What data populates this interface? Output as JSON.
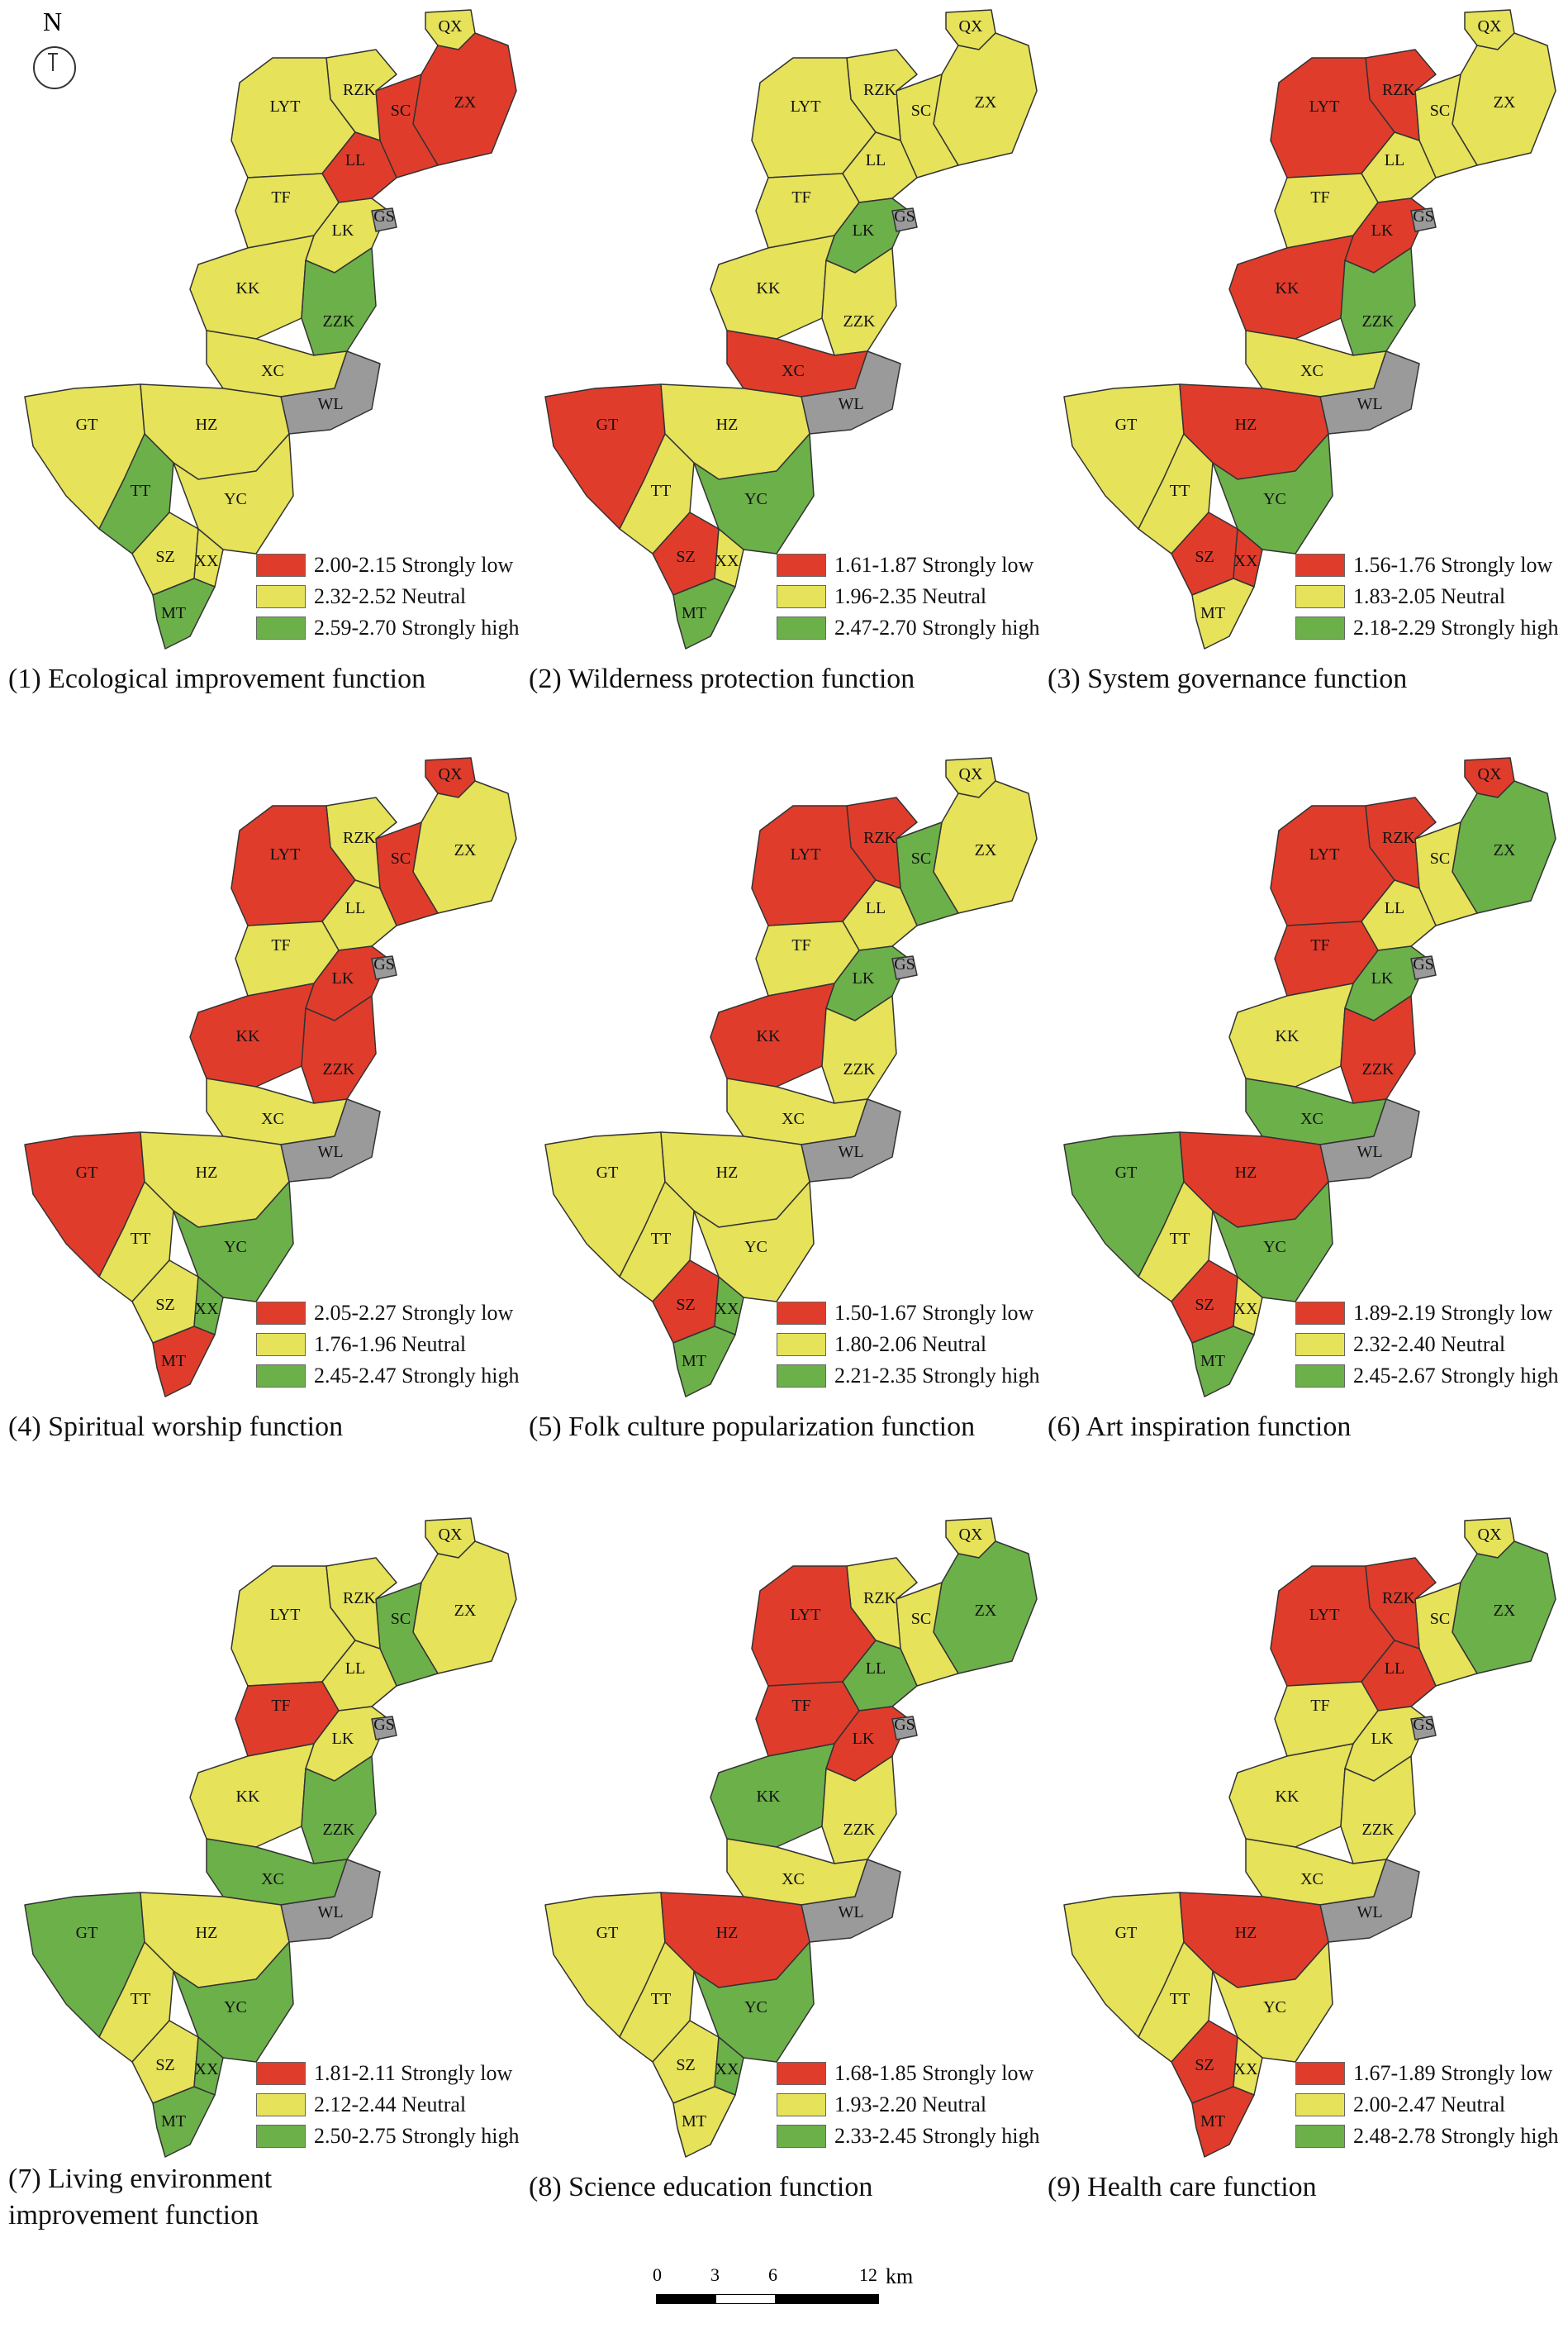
{
  "north_label": "N",
  "colors": {
    "low": "#e03c2c",
    "neutral": "#e6e25a",
    "high": "#6cb04a",
    "none": "#9a9a9a",
    "border": "#333333"
  },
  "regions": [
    "QX",
    "ZX",
    "SC",
    "RZK",
    "LYT",
    "LL",
    "TF",
    "LK",
    "GS",
    "KK",
    "ZZK",
    "XC",
    "WL",
    "GT",
    "HZ",
    "TT",
    "YC",
    "SZ",
    "XX",
    "MT"
  ],
  "maps": [
    {
      "caption": "(1) Ecological improvement function",
      "legend": [
        "2.00-2.15 Strongly low",
        "2.32-2.52 Neutral",
        "2.59-2.70 Strongly high"
      ],
      "classes": {
        "QX": "neutral",
        "ZX": "low",
        "SC": "low",
        "RZK": "neutral",
        "LYT": "neutral",
        "LL": "low",
        "TF": "neutral",
        "LK": "neutral",
        "GS": "none",
        "KK": "neutral",
        "ZZK": "high",
        "XC": "neutral",
        "WL": "none",
        "GT": "neutral",
        "HZ": "neutral",
        "TT": "high",
        "YC": "neutral",
        "SZ": "neutral",
        "XX": "neutral",
        "MT": "high"
      }
    },
    {
      "caption": "(2) Wilderness protection function",
      "legend": [
        "1.61-1.87 Strongly low",
        "1.96-2.35 Neutral",
        "2.47-2.70 Strongly high"
      ],
      "classes": {
        "QX": "neutral",
        "ZX": "neutral",
        "SC": "neutral",
        "RZK": "neutral",
        "LYT": "neutral",
        "LL": "neutral",
        "TF": "neutral",
        "LK": "high",
        "GS": "none",
        "KK": "neutral",
        "ZZK": "neutral",
        "XC": "low",
        "WL": "none",
        "GT": "low",
        "HZ": "neutral",
        "TT": "neutral",
        "YC": "high",
        "SZ": "low",
        "XX": "neutral",
        "MT": "high"
      }
    },
    {
      "caption": "(3) System governance function",
      "legend": [
        "1.56-1.76 Strongly low",
        "1.83-2.05 Neutral",
        "2.18-2.29 Strongly high"
      ],
      "classes": {
        "QX": "neutral",
        "ZX": "neutral",
        "SC": "neutral",
        "RZK": "low",
        "LYT": "low",
        "LL": "neutral",
        "TF": "neutral",
        "LK": "low",
        "GS": "none",
        "KK": "low",
        "ZZK": "high",
        "XC": "neutral",
        "WL": "none",
        "GT": "neutral",
        "HZ": "low",
        "TT": "neutral",
        "YC": "high",
        "SZ": "low",
        "XX": "low",
        "MT": "neutral"
      }
    },
    {
      "caption": "(4) Spiritual worship function",
      "legend": [
        "2.05-2.27 Strongly low",
        "1.76-1.96 Neutral",
        "2.45-2.47 Strongly high"
      ],
      "classes": {
        "QX": "low",
        "ZX": "neutral",
        "SC": "low",
        "RZK": "neutral",
        "LYT": "low",
        "LL": "neutral",
        "TF": "neutral",
        "LK": "low",
        "GS": "none",
        "KK": "low",
        "ZZK": "low",
        "XC": "neutral",
        "WL": "none",
        "GT": "low",
        "HZ": "neutral",
        "TT": "neutral",
        "YC": "high",
        "SZ": "neutral",
        "XX": "high",
        "MT": "low"
      }
    },
    {
      "caption": "(5) Folk culture popularization function",
      "legend": [
        "1.50-1.67 Strongly low",
        "1.80-2.06 Neutral",
        "2.21-2.35 Strongly high"
      ],
      "classes": {
        "QX": "neutral",
        "ZX": "neutral",
        "SC": "high",
        "RZK": "low",
        "LYT": "low",
        "LL": "neutral",
        "TF": "neutral",
        "LK": "high",
        "GS": "none",
        "KK": "low",
        "ZZK": "neutral",
        "XC": "neutral",
        "WL": "none",
        "GT": "neutral",
        "HZ": "neutral",
        "TT": "neutral",
        "YC": "neutral",
        "SZ": "low",
        "XX": "high",
        "MT": "high"
      }
    },
    {
      "caption": "(6) Art inspiration function",
      "legend": [
        "1.89-2.19 Strongly low",
        "2.32-2.40 Neutral",
        "2.45-2.67 Strongly high"
      ],
      "classes": {
        "QX": "low",
        "ZX": "high",
        "SC": "neutral",
        "RZK": "low",
        "LYT": "low",
        "LL": "neutral",
        "TF": "low",
        "LK": "high",
        "GS": "none",
        "KK": "neutral",
        "ZZK": "low",
        "XC": "high",
        "WL": "none",
        "GT": "high",
        "HZ": "low",
        "TT": "neutral",
        "YC": "high",
        "SZ": "low",
        "XX": "neutral",
        "MT": "high"
      }
    },
    {
      "caption": "(7) Living environment improvement function",
      "legend": [
        "1.81-2.11 Strongly low",
        "2.12-2.44 Neutral",
        "2.50-2.75 Strongly high"
      ],
      "classes": {
        "QX": "neutral",
        "ZX": "neutral",
        "SC": "high",
        "RZK": "neutral",
        "LYT": "neutral",
        "LL": "neutral",
        "TF": "low",
        "LK": "neutral",
        "GS": "none",
        "KK": "neutral",
        "ZZK": "high",
        "XC": "high",
        "WL": "none",
        "GT": "high",
        "HZ": "neutral",
        "TT": "neutral",
        "YC": "high",
        "SZ": "neutral",
        "XX": "high",
        "MT": "high"
      }
    },
    {
      "caption": "(8) Science education function",
      "legend": [
        "1.68-1.85 Strongly low",
        "1.93-2.20 Neutral",
        "2.33-2.45 Strongly high"
      ],
      "classes": {
        "QX": "neutral",
        "ZX": "high",
        "SC": "neutral",
        "RZK": "neutral",
        "LYT": "low",
        "LL": "high",
        "TF": "low",
        "LK": "low",
        "GS": "none",
        "KK": "high",
        "ZZK": "neutral",
        "XC": "neutral",
        "WL": "none",
        "GT": "neutral",
        "HZ": "low",
        "TT": "neutral",
        "YC": "high",
        "SZ": "neutral",
        "XX": "high",
        "MT": "neutral"
      }
    },
    {
      "caption": "(9) Health care function",
      "legend": [
        "1.67-1.89 Strongly low",
        "2.00-2.47 Neutral",
        "2.48-2.78 Strongly high"
      ],
      "classes": {
        "QX": "neutral",
        "ZX": "high",
        "SC": "neutral",
        "RZK": "low",
        "LYT": "low",
        "LL": "low",
        "TF": "neutral",
        "LK": "neutral",
        "GS": "none",
        "KK": "neutral",
        "ZZK": "neutral",
        "XC": "neutral",
        "WL": "none",
        "GT": "neutral",
        "HZ": "low",
        "TT": "neutral",
        "YC": "neutral",
        "SZ": "low",
        "XX": "neutral",
        "MT": "low"
      }
    }
  ],
  "scale_bar": {
    "ticks": [
      "0",
      "3",
      "6",
      "12"
    ],
    "unit": "km"
  }
}
